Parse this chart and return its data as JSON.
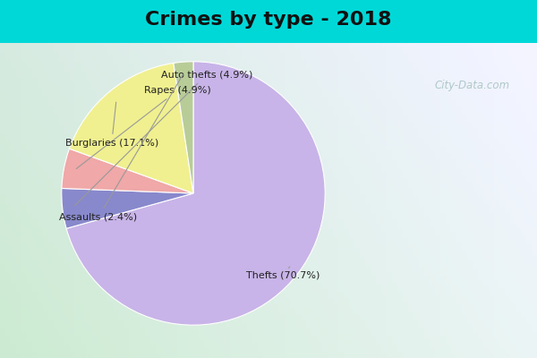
{
  "title": "Crimes by type - 2018",
  "slices": [
    {
      "label": "Thefts (70.7%)",
      "value": 70.7,
      "color": "#c8b4e8"
    },
    {
      "label": "Auto thefts (4.9%)",
      "value": 4.9,
      "color": "#8888cc"
    },
    {
      "label": "Rapes (4.9%)",
      "value": 4.9,
      "color": "#f0a8a8"
    },
    {
      "label": "Burglaries (17.1%)",
      "value": 17.1,
      "color": "#f0f090"
    },
    {
      "label": "Assaults (2.4%)",
      "value": 2.4,
      "color": "#b8cc98"
    }
  ],
  "bg_color_top": "#00d8d8",
  "title_fontsize": 16,
  "title_fontweight": "bold",
  "label_annotations": [
    {
      "label": "Thefts (70.7%)",
      "xt": 0.68,
      "yt": -0.62,
      "xa": 0.38,
      "ya": -0.18
    },
    {
      "label": "Auto thefts (4.9%)",
      "xt": 0.1,
      "yt": 0.9,
      "xa": 0.08,
      "ya": 0.48
    },
    {
      "label": "Rapes (4.9%)",
      "xt": -0.12,
      "yt": 0.78,
      "xa": -0.07,
      "ya": 0.4
    },
    {
      "label": "Burglaries (17.1%)",
      "xt": -0.62,
      "yt": 0.38,
      "xa": -0.28,
      "ya": 0.22
    },
    {
      "label": "Assaults (2.4%)",
      "xt": -0.72,
      "yt": -0.18,
      "xa": -0.25,
      "ya": -0.26
    }
  ]
}
